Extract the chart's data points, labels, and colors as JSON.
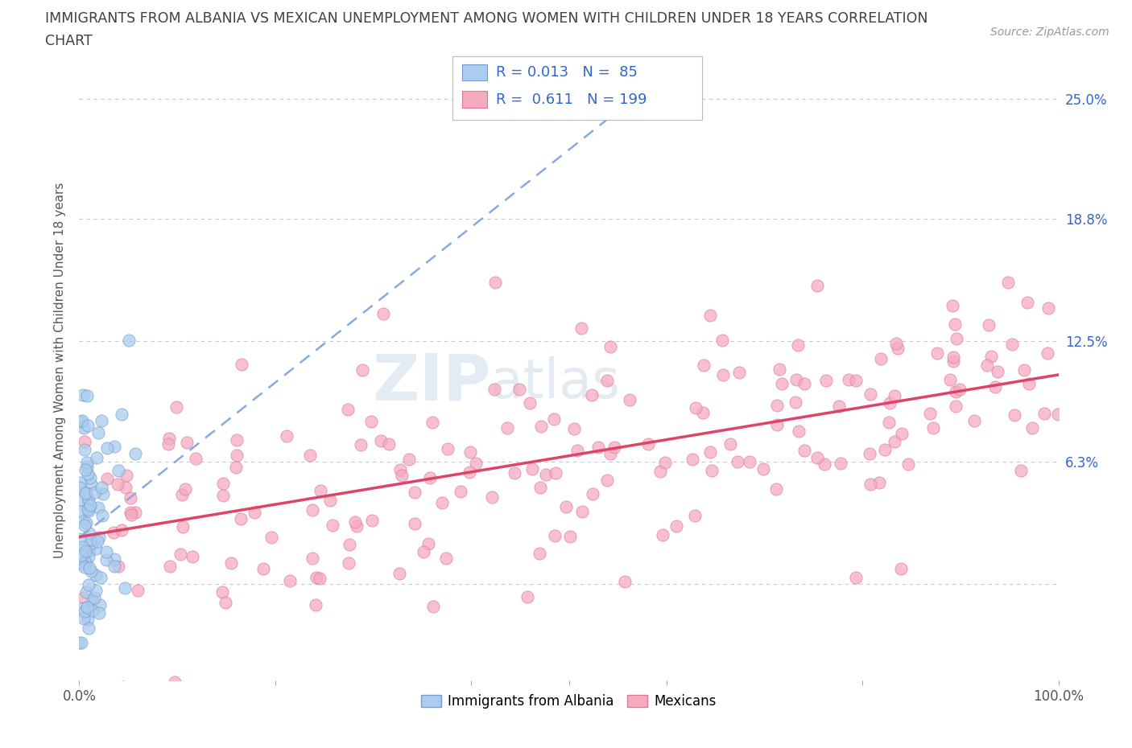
{
  "title_line1": "IMMIGRANTS FROM ALBANIA VS MEXICAN UNEMPLOYMENT AMONG WOMEN WITH CHILDREN UNDER 18 YEARS CORRELATION",
  "title_line2": "CHART",
  "source": "Source: ZipAtlas.com",
  "ylabel": "Unemployment Among Women with Children Under 18 years",
  "xlim": [
    0,
    100
  ],
  "ylim": [
    -5,
    27
  ],
  "ytick_positions": [
    0,
    6.3,
    12.5,
    18.8,
    25.0
  ],
  "ytick_labels": [
    "",
    "6.3%",
    "12.5%",
    "18.8%",
    "25.0%"
  ],
  "xtick_labels": [
    "0.0%",
    "",
    "",
    "",
    "",
    "",
    "100.0%"
  ],
  "grid_color": "#c8c8c8",
  "background_color": "#ffffff",
  "watermark_zip": "ZIP",
  "watermark_atlas": "atlas",
  "albania_color": "#aaccee",
  "albania_edge": "#7799cc",
  "mexico_color": "#f5aabf",
  "mexico_edge": "#dd7799",
  "albania_trend_color": "#88aadd",
  "mexico_trend_color": "#dd4466",
  "albania_R": 0.013,
  "albania_N": 85,
  "mexico_R": 0.611,
  "mexico_N": 199,
  "legend_text_color": "#3366cc",
  "title_color": "#404040",
  "source_color": "#999999",
  "right_axis_color": "#3366cc"
}
